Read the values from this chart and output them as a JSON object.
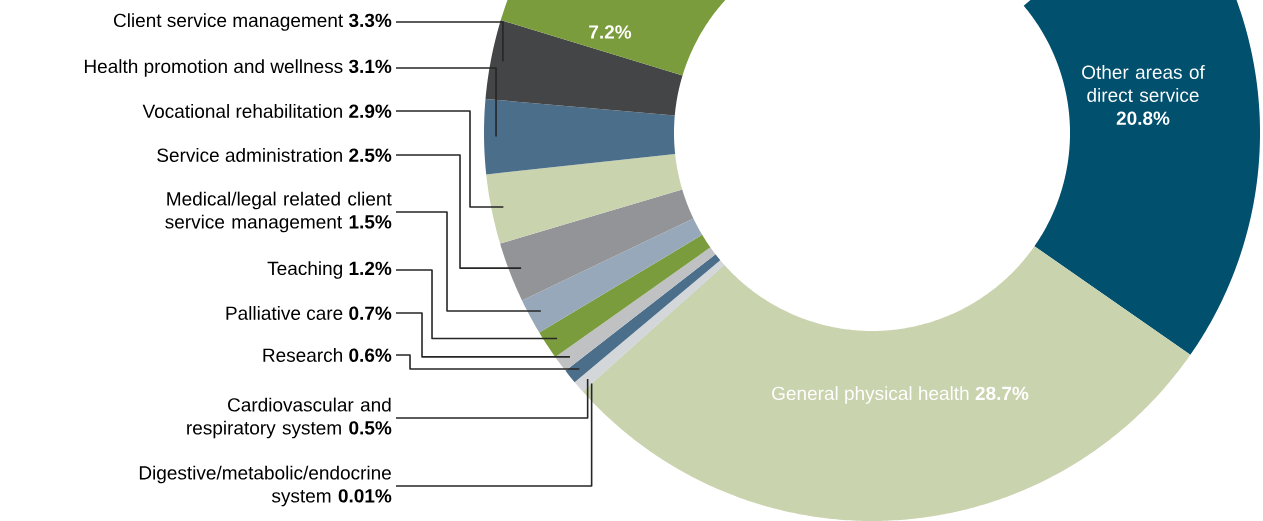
{
  "chart_data": {
    "type": "donut",
    "categories": [
      "Other areas of direct service",
      "General physical health",
      "Digestive/metabolic/endocrine system",
      "Cardiovascular and respiratory system",
      "Research",
      "Palliative care",
      "Teaching",
      "Medical/legal related client service management",
      "Service administration",
      "Vocational rehabilitation",
      "Health promotion and wellness",
      "Client service management",
      null
    ],
    "values": [
      20.8,
      28.7,
      0.01,
      0.5,
      0.6,
      0.7,
      1.2,
      1.5,
      2.5,
      2.9,
      3.1,
      3.3,
      7.2
    ],
    "value_labels": [
      "20.8%",
      "28.7%",
      "0.01%",
      "0.5%",
      "0.6%",
      "0.7%",
      "1.2%",
      "1.5%",
      "2.5%",
      "2.9%",
      "3.1%",
      "3.3%",
      "7.2%"
    ],
    "colors": [
      "#00506e",
      "#c9d3ae",
      "#9aa8b8",
      "#d4d7da",
      "#4b6e8a",
      "#bfc1c3",
      "#7a9c3c",
      "#97a8ba",
      "#929497",
      "#c9d3ae",
      "#4b6e8a",
      "#434547",
      "#7a9c3c"
    ]
  }
}
